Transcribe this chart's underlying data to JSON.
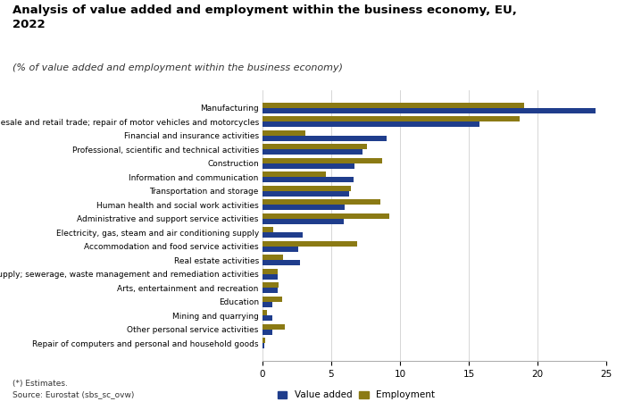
{
  "title": "Analysis of value added and employment within the business economy, EU,\n2022",
  "subtitle": "(% of value added and employment within the business economy)",
  "categories": [
    "Manufacturing",
    "Wholesale and retail trade; repair of motor vehicles and motorcycles",
    "Financial and insurance activities",
    "Professional, scientific and technical activities",
    "Construction",
    "Information and communication",
    "Transportation and storage",
    "Human health and social work activities",
    "Administrative and support service activities",
    "Electricity, gas, steam and air conditioning supply",
    "Accommodation and food service activities",
    "Real estate activities",
    "Water supply; sewerage, waste management and remediation activities",
    "Arts, entertainment and recreation",
    "Education",
    "Mining and quarrying",
    "Other personal service activities",
    "Repair of computers and personal and household goods"
  ],
  "value_added": [
    24.2,
    15.8,
    9.0,
    7.3,
    6.7,
    6.6,
    6.3,
    6.0,
    5.9,
    2.9,
    2.6,
    2.7,
    1.1,
    1.1,
    0.7,
    0.7,
    0.7,
    0.1
  ],
  "employment": [
    19.0,
    18.7,
    3.1,
    7.6,
    8.7,
    4.6,
    6.4,
    8.6,
    9.2,
    0.8,
    6.9,
    1.5,
    1.1,
    1.2,
    1.4,
    0.3,
    1.6,
    0.2
  ],
  "value_added_color": "#1f3d8c",
  "employment_color": "#8b7a14",
  "background_color": "#ffffff",
  "footnote": "(*) Estimates.",
  "source": "Source: Eurostat (sbs_sc_ovw)",
  "xlim": [
    0,
    25
  ],
  "xticks": [
    0,
    5,
    10,
    15,
    20,
    25
  ]
}
